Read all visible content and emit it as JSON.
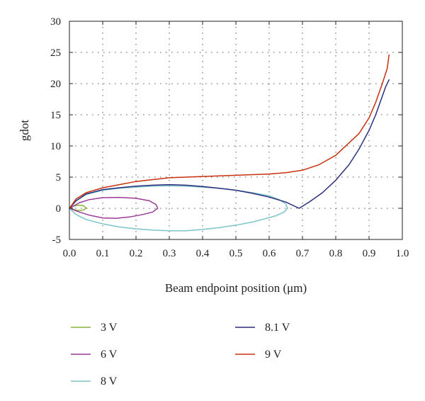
{
  "chart_data": {
    "type": "line",
    "title": "",
    "xlabel": "Beam endpoint position (μm)",
    "ylabel": "gdot",
    "xlim": [
      0.0,
      1.0
    ],
    "ylim": [
      -5,
      30
    ],
    "x_ticks": [
      "0.0",
      "0.1",
      "0.2",
      "0.3",
      "0.4",
      "0.5",
      "0.6",
      "0.7",
      "0.8",
      "0.9",
      "1.0"
    ],
    "y_ticks": [
      "-5",
      "0",
      "5",
      "10",
      "15",
      "20",
      "25",
      "30"
    ],
    "grid": "dotted",
    "legend_position": "bottom",
    "series": [
      {
        "name": "3 V",
        "color": "#8bb43a",
        "x": [
          0.0,
          0.01,
          0.02,
          0.03,
          0.04,
          0.045,
          0.05,
          0.045,
          0.04,
          0.03,
          0.02,
          0.01,
          0.0
        ],
        "y": [
          0.0,
          0.3,
          0.45,
          0.5,
          0.45,
          0.3,
          0.05,
          -0.2,
          -0.3,
          -0.35,
          -0.3,
          -0.15,
          0.0
        ]
      },
      {
        "name": "6 V",
        "color": "#9c3b97",
        "x": [
          0.0,
          0.03,
          0.06,
          0.1,
          0.15,
          0.2,
          0.24,
          0.26,
          0.265,
          0.25,
          0.22,
          0.18,
          0.14,
          0.1,
          0.06,
          0.03,
          0.0
        ],
        "y": [
          0.0,
          0.9,
          1.4,
          1.7,
          1.75,
          1.6,
          1.2,
          0.6,
          0.0,
          -0.6,
          -1.0,
          -1.4,
          -1.6,
          -1.55,
          -1.1,
          -0.6,
          0.0
        ]
      },
      {
        "name": "8 V",
        "color": "#7cc4c8",
        "x": [
          0.0,
          0.02,
          0.05,
          0.1,
          0.15,
          0.2,
          0.25,
          0.3,
          0.35,
          0.4,
          0.45,
          0.5,
          0.55,
          0.6,
          0.63,
          0.65,
          0.655,
          0.645,
          0.62,
          0.6,
          0.55,
          0.5,
          0.45,
          0.4,
          0.35,
          0.3,
          0.25,
          0.2,
          0.15,
          0.1,
          0.05,
          0.02,
          0.0
        ],
        "y": [
          0.0,
          1.2,
          2.2,
          2.9,
          3.2,
          3.4,
          3.55,
          3.6,
          3.55,
          3.4,
          3.2,
          2.9,
          2.5,
          2.0,
          1.4,
          0.7,
          0.0,
          -0.6,
          -1.2,
          -1.5,
          -2.2,
          -2.7,
          -3.1,
          -3.4,
          -3.6,
          -3.6,
          -3.5,
          -3.3,
          -3.0,
          -2.5,
          -1.8,
          -1.0,
          0.0
        ]
      },
      {
        "name": "8.1 V",
        "color": "#2b2f7e",
        "x": [
          0.0,
          0.02,
          0.05,
          0.1,
          0.15,
          0.2,
          0.25,
          0.3,
          0.35,
          0.4,
          0.45,
          0.5,
          0.55,
          0.6,
          0.65,
          0.69,
          0.72,
          0.76,
          0.8,
          0.84,
          0.87,
          0.9,
          0.92,
          0.94,
          0.95,
          0.96
        ],
        "y": [
          0.0,
          1.2,
          2.3,
          3.0,
          3.3,
          3.55,
          3.7,
          3.8,
          3.7,
          3.5,
          3.2,
          2.9,
          2.4,
          1.8,
          1.0,
          0.0,
          1.0,
          2.5,
          4.5,
          7.0,
          9.5,
          12.5,
          15.0,
          18.0,
          19.5,
          20.6
        ]
      },
      {
        "name": "9 V",
        "color": "#c8320f",
        "x": [
          0.0,
          0.02,
          0.05,
          0.1,
          0.15,
          0.2,
          0.25,
          0.3,
          0.35,
          0.4,
          0.45,
          0.5,
          0.55,
          0.6,
          0.65,
          0.7,
          0.75,
          0.8,
          0.84,
          0.87,
          0.9,
          0.92,
          0.94,
          0.955,
          0.96
        ],
        "y": [
          0.0,
          1.5,
          2.5,
          3.3,
          3.8,
          4.3,
          4.6,
          4.9,
          5.0,
          5.1,
          5.2,
          5.3,
          5.4,
          5.5,
          5.7,
          6.1,
          7.0,
          8.5,
          10.5,
          12.0,
          14.5,
          17.0,
          20.0,
          22.5,
          24.6
        ]
      }
    ]
  }
}
